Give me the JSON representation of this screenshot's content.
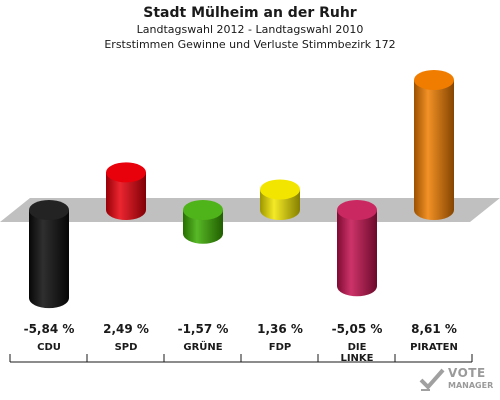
{
  "header": {
    "title": "Stadt Mülheim an der Ruhr",
    "subtitle1": "Landtagswahl 2012 - Landtagswahl 2010",
    "subtitle2": "Erststimmen Gewinne und Verluste Stimmbezirk 172"
  },
  "logo": {
    "line1": "VOTE",
    "line2": "MANAGER",
    "icon": "vote-check-icon"
  },
  "chart_data": {
    "type": "bar",
    "title": "Stadt Mülheim an der Ruhr",
    "categories": [
      "CDU",
      "SPD",
      "GRÜNE",
      "FDP",
      "DIE LINKE",
      "PIRATEN"
    ],
    "values": [
      -5.84,
      2.49,
      -1.57,
      1.36,
      -5.05,
      8.61
    ],
    "value_labels": [
      "-5,84 %",
      "2,49 %",
      "-1,57 %",
      "1,36 %",
      "-5,05 %",
      "8,61 %"
    ],
    "colors": [
      "#0a0a0a",
      "#e8000b",
      "#3bab00",
      "#f2e600",
      "#c4104f",
      "#f07d00"
    ],
    "ylim": [
      -6.5,
      9.5
    ],
    "grid": false,
    "legend": "none"
  }
}
